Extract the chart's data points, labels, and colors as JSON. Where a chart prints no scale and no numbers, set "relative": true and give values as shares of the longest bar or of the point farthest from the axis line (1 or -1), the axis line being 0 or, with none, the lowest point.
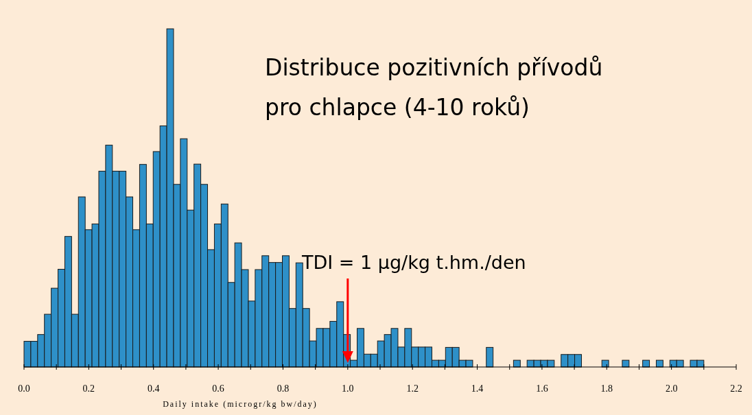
{
  "chart_data": {
    "type": "bar",
    "relative": true,
    "title": "Distribuce pozitivních přívodů\npro chlapce (4-10 roků)",
    "xlabel": "Daily intake (microgr/kg bw/day)",
    "ref_lines": [
      {
        "axis": "x",
        "value": 1,
        "label": "TDI = 1 µg/kg t.hm./den",
        "color": "#ff0000"
      }
    ],
    "color": "#2e90c8",
    "x": [
      0.0105,
      0.0315,
      0.0525,
      0.0735,
      0.0945,
      0.1155,
      0.1365,
      0.1575,
      0.1785,
      0.1995,
      0.2205,
      0.2415,
      0.2625,
      0.2835,
      0.3045,
      0.3255,
      0.3465,
      0.3675,
      0.3885,
      0.4095,
      0.4305,
      0.4515,
      0.4725,
      0.4935,
      0.5145,
      0.5355,
      0.5565,
      0.5775,
      0.5985,
      0.6195,
      0.6405,
      0.6615,
      0.6825,
      0.7035,
      0.7245,
      0.7455,
      0.7665,
      0.7875,
      0.8085,
      0.8295,
      0.8505,
      0.8715,
      0.8925,
      0.9135,
      0.9345,
      0.9555,
      0.9765,
      0.9975,
      1.0185,
      1.0395,
      1.0605,
      1.0815,
      1.1025,
      1.1235,
      1.1445,
      1.1655,
      1.1865,
      1.2075,
      1.2285,
      1.2495,
      1.2705,
      1.2915,
      1.3125,
      1.3335,
      1.3545,
      1.3755,
      1.3965,
      1.4175,
      1.4385,
      1.4595,
      1.4805,
      1.5015,
      1.5225,
      1.5435,
      1.5645,
      1.5855,
      1.6065,
      1.6275,
      1.6485,
      1.6695,
      1.6905,
      1.7115,
      1.7325,
      1.7535,
      1.7745,
      1.7955,
      1.8165,
      1.8375,
      1.8585,
      1.8795,
      1.9005,
      1.9215,
      1.9425,
      1.9635,
      1.9845,
      2.0055,
      2.0265,
      2.0475,
      2.0685,
      2.0895
    ],
    "values": [
      0.076,
      0.076,
      0.096,
      0.156,
      0.233,
      0.289,
      0.386,
      0.156,
      0.503,
      0.406,
      0.423,
      0.579,
      0.656,
      0.579,
      0.579,
      0.503,
      0.406,
      0.599,
      0.423,
      0.637,
      0.713,
      1,
      0.54,
      0.675,
      0.464,
      0.6,
      0.54,
      0.347,
      0.423,
      0.482,
      0.25,
      0.367,
      0.288,
      0.195,
      0.288,
      0.329,
      0.309,
      0.309,
      0.329,
      0.173,
      0.308,
      0.173,
      0.077,
      0.114,
      0.114,
      0.135,
      0.193,
      0.096,
      0.02,
      0.114,
      0.038,
      0.038,
      0.077,
      0.096,
      0.114,
      0.059,
      0.114,
      0.059,
      0.059,
      0.059,
      0.02,
      0.02,
      0.058,
      0.058,
      0.02,
      0.02,
      0,
      0,
      0.058,
      0,
      0,
      0,
      0.02,
      0,
      0.02,
      0.02,
      0.02,
      0.02,
      0,
      0.037,
      0.037,
      0.037,
      0,
      0,
      0,
      0.02,
      0,
      0,
      0.02,
      0,
      0,
      0.02,
      0,
      0.02,
      0,
      0.02,
      0.02,
      0,
      0.02,
      0.02
    ],
    "xlim": [
      0,
      2.2
    ],
    "xticks": [
      {
        "value": 0,
        "label": "0.0"
      },
      {
        "value": 0.1,
        "label": null
      },
      {
        "value": 0.2,
        "label": "0.2"
      },
      {
        "value": 0.3,
        "label": null
      },
      {
        "value": 0.4,
        "label": "0.4"
      },
      {
        "value": 0.5,
        "label": null
      },
      {
        "value": 0.6,
        "label": "0.6"
      },
      {
        "value": 0.7,
        "label": null
      },
      {
        "value": 0.8,
        "label": "0.8"
      },
      {
        "value": 0.9,
        "label": null
      },
      {
        "value": 1,
        "label": "1.0"
      },
      {
        "value": 1.1,
        "label": null
      },
      {
        "value": 1.2,
        "label": "1.2"
      },
      {
        "value": 1.3,
        "label": null
      },
      {
        "value": 1.4,
        "label": "1.4"
      },
      {
        "value": 1.5,
        "label": null
      },
      {
        "value": 1.6,
        "label": "1.6"
      },
      {
        "value": 1.7,
        "label": null
      },
      {
        "value": 1.8,
        "label": "1.8"
      },
      {
        "value": 1.9,
        "label": null
      },
      {
        "value": 2,
        "label": "2.0"
      },
      {
        "value": 2.1,
        "label": null
      },
      {
        "value": 2.2,
        "label": "2.2"
      }
    ]
  }
}
